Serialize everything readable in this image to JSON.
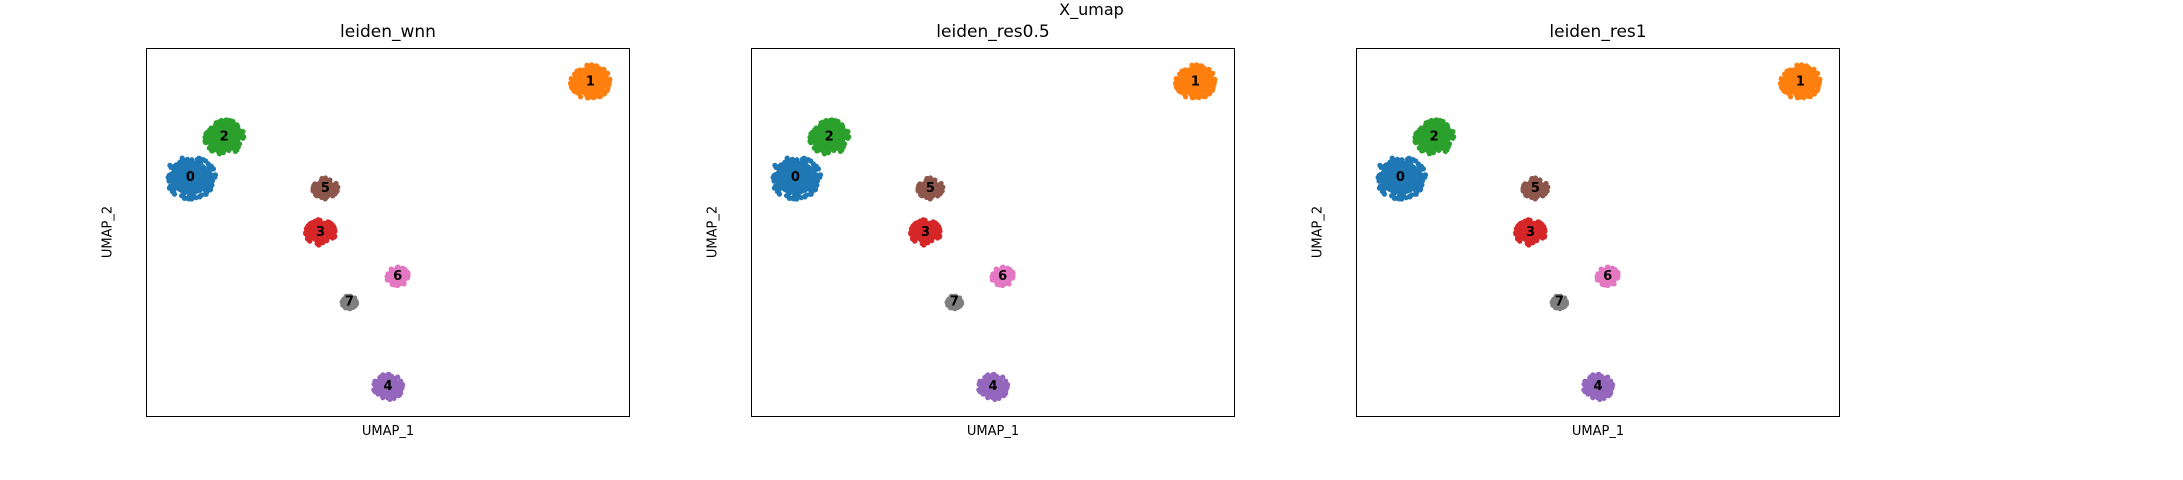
{
  "figure": {
    "suptitle": "X_umap"
  },
  "chart_data": [
    {
      "type": "scatter",
      "title": "leiden_wnn",
      "xlabel": "UMAP_1",
      "ylabel": "UMAP_2",
      "grid": false,
      "legend": "on data",
      "clusters": [
        {
          "label": "0",
          "color": "#1f77b4",
          "cx": 0.09,
          "cy": 0.65,
          "size": 0.05
        },
        {
          "label": "1",
          "color": "#ff7f0e",
          "cx": 0.92,
          "cy": 0.91,
          "size": 0.04
        },
        {
          "label": "2",
          "color": "#2ca02c",
          "cx": 0.16,
          "cy": 0.76,
          "size": 0.04
        },
        {
          "label": "3",
          "color": "#d62728",
          "cx": 0.36,
          "cy": 0.5,
          "size": 0.03
        },
        {
          "label": "4",
          "color": "#9467bd",
          "cx": 0.5,
          "cy": 0.08,
          "size": 0.03
        },
        {
          "label": "5",
          "color": "#8c564b",
          "cx": 0.37,
          "cy": 0.62,
          "size": 0.025
        },
        {
          "label": "6",
          "color": "#e377c2",
          "cx": 0.52,
          "cy": 0.38,
          "size": 0.022
        },
        {
          "label": "7",
          "color": "#7f7f7f",
          "cx": 0.42,
          "cy": 0.31,
          "size": 0.015
        }
      ]
    },
    {
      "type": "scatter",
      "title": "leiden_res0.5",
      "xlabel": "UMAP_1",
      "ylabel": "UMAP_2",
      "grid": false,
      "legend": "on data",
      "clusters": [
        {
          "label": "0",
          "color": "#1f77b4",
          "cx": 0.09,
          "cy": 0.65,
          "size": 0.05
        },
        {
          "label": "1",
          "color": "#ff7f0e",
          "cx": 0.92,
          "cy": 0.91,
          "size": 0.04
        },
        {
          "label": "2",
          "color": "#2ca02c",
          "cx": 0.16,
          "cy": 0.76,
          "size": 0.04
        },
        {
          "label": "3",
          "color": "#d62728",
          "cx": 0.36,
          "cy": 0.5,
          "size": 0.03
        },
        {
          "label": "4",
          "color": "#9467bd",
          "cx": 0.5,
          "cy": 0.08,
          "size": 0.03
        },
        {
          "label": "5",
          "color": "#8c564b",
          "cx": 0.37,
          "cy": 0.62,
          "size": 0.025
        },
        {
          "label": "6",
          "color": "#e377c2",
          "cx": 0.52,
          "cy": 0.38,
          "size": 0.022
        },
        {
          "label": "7",
          "color": "#7f7f7f",
          "cx": 0.42,
          "cy": 0.31,
          "size": 0.015
        }
      ]
    },
    {
      "type": "scatter",
      "title": "leiden_res1",
      "xlabel": "UMAP_1",
      "ylabel": "UMAP_2",
      "grid": false,
      "legend": "on data",
      "clusters": [
        {
          "label": "0",
          "color": "#1f77b4",
          "cx": 0.09,
          "cy": 0.65,
          "size": 0.05
        },
        {
          "label": "1",
          "color": "#ff7f0e",
          "cx": 0.92,
          "cy": 0.91,
          "size": 0.04
        },
        {
          "label": "2",
          "color": "#2ca02c",
          "cx": 0.16,
          "cy": 0.76,
          "size": 0.04
        },
        {
          "label": "3",
          "color": "#d62728",
          "cx": 0.36,
          "cy": 0.5,
          "size": 0.03
        },
        {
          "label": "4",
          "color": "#9467bd",
          "cx": 0.5,
          "cy": 0.08,
          "size": 0.03
        },
        {
          "label": "5",
          "color": "#8c564b",
          "cx": 0.37,
          "cy": 0.62,
          "size": 0.025
        },
        {
          "label": "6",
          "color": "#e377c2",
          "cx": 0.52,
          "cy": 0.38,
          "size": 0.022
        },
        {
          "label": "7",
          "color": "#7f7f7f",
          "cx": 0.42,
          "cy": 0.31,
          "size": 0.015
        }
      ]
    }
  ]
}
